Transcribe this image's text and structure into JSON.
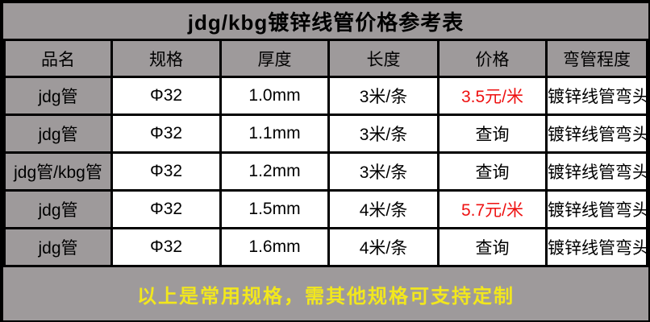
{
  "title": "jdg/kbg镀锌线管价格参考表",
  "table": {
    "headers": [
      "品名",
      "规格",
      "厚度",
      "长度",
      "价格",
      "弯管程度"
    ],
    "rows": [
      {
        "cells": [
          "jdg管",
          "Φ32",
          "1.0mm",
          "3米/条",
          "3.5元/米",
          "镀锌线管弯头"
        ]
      },
      {
        "cells": [
          "jdg管",
          "Φ32",
          "1.1mm",
          "3米/条",
          "查询",
          "镀锌线管弯头"
        ]
      },
      {
        "cells": [
          "jdg管/kbg管",
          "Φ32",
          "1.2mm",
          "3米/条",
          "查询",
          "镀锌线管弯头"
        ]
      },
      {
        "cells": [
          "jdg管",
          "Φ32",
          "1.5mm",
          "4米/条",
          "5.7元/米",
          "镀锌线管弯头"
        ]
      },
      {
        "cells": [
          "jdg管",
          "Φ32",
          "1.6mm",
          "4米/条",
          "查询",
          "镀锌线管弯头"
        ]
      }
    ]
  },
  "footer": {
    "text": "以上是常用规格，需其他规格可支持定制"
  },
  "colors": {
    "background_gray": "#9e9a9b",
    "cell_white": "#ffffff",
    "border_black": "#000000",
    "price_red": "#ee1111",
    "footer_yellow": "#f2e71d"
  }
}
